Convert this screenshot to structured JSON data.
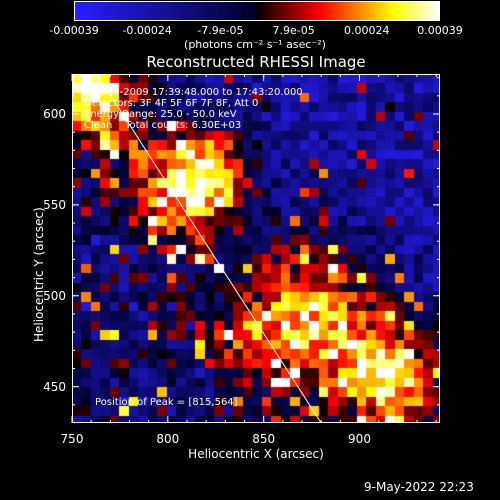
{
  "chart_data": {
    "type": "heatmap",
    "title": "Reconstructed RHESSI Image",
    "xlabel": "Heliocentric X (arcsec)",
    "ylabel": "Heliocentric Y (arcsec)",
    "xlim": [
      750,
      942
    ],
    "ylim": [
      430,
      622
    ],
    "x_ticks": [
      750,
      800,
      850,
      900
    ],
    "y_ticks": [
      450,
      500,
      550,
      600
    ],
    "colorbar": {
      "range": [
        -0.00039,
        0.00039
      ],
      "ticks": [
        "-0.00039",
        "-0.00024",
        "-7.9e-05",
        "7.9e-05",
        "0.00024",
        "0.00039"
      ],
      "units_label": "(photons cm⁻² s⁻¹ asec⁻²)",
      "colors": [
        "#0000ff",
        "#000000",
        "#ff0000",
        "#ffffff"
      ]
    },
    "annotations": [
      "20-Dec-2009 17:39:48.000 to 17:43:20.000",
      "Detectors: 3F 4F 5F 6F 7F 8F, Att 0",
      "Energy Range: 25.0 - 50.0 keV",
      "Clean    Total counts: 6.30E+03"
    ],
    "peak_label": "Position of Peak = [815,564]",
    "peak": [
      815,
      564
    ],
    "limb_line": [
      [
        763,
        622
      ],
      [
        880,
        430
      ]
    ],
    "sources": [
      {
        "x": 815,
        "y": 564
      },
      {
        "x": 872,
        "y": 488
      },
      {
        "x": 918,
        "y": 452
      },
      {
        "x": 760,
        "y": 615
      }
    ]
  },
  "footer": {
    "timestamp": "9-May-2022 22:23"
  }
}
